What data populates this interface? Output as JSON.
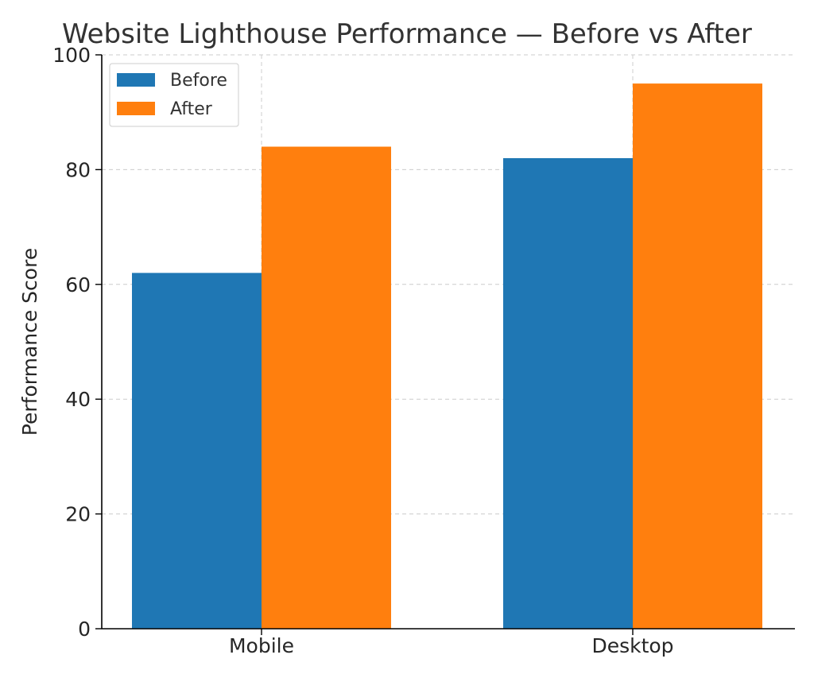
{
  "chart_data": {
    "type": "bar",
    "title": "Website Lighthouse Performance — Before vs After",
    "xlabel": "",
    "ylabel": "Performance Score",
    "categories": [
      "Mobile",
      "Desktop"
    ],
    "series": [
      {
        "name": "Before",
        "values": [
          62,
          82
        ],
        "color": "#1f77b4"
      },
      {
        "name": "After",
        "values": [
          84,
          95
        ],
        "color": "#ff7f0e"
      }
    ],
    "ylim": [
      0,
      100
    ],
    "yticks": [
      "0",
      "20",
      "40",
      "60",
      "80",
      "100"
    ],
    "grid": true,
    "legend_position": "top-left"
  }
}
